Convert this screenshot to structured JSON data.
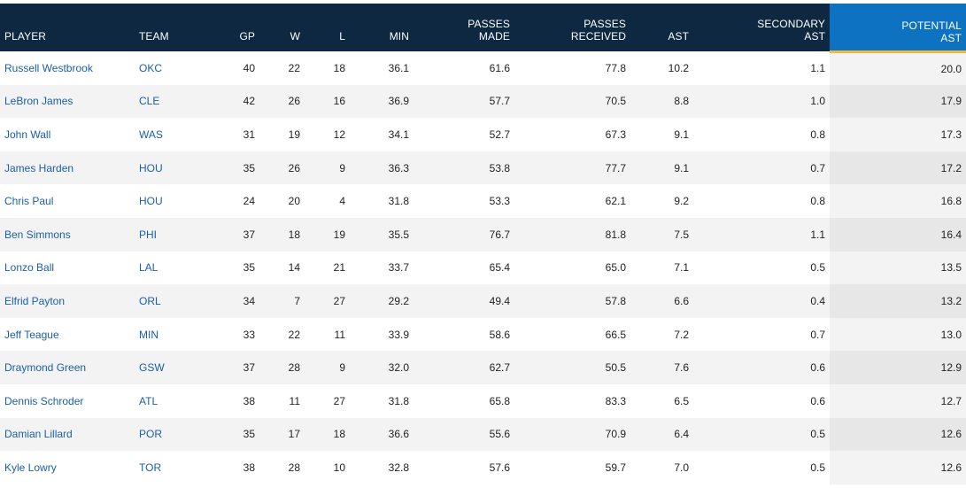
{
  "columns": [
    {
      "key": "player",
      "lines": [
        "PLAYER"
      ],
      "align": "left",
      "width": 152
    },
    {
      "key": "team",
      "lines": [
        "TEAM"
      ],
      "align": "left",
      "width": 104
    },
    {
      "key": "gp",
      "lines": [
        "GP"
      ],
      "align": "right",
      "width": 37
    },
    {
      "key": "w",
      "lines": [
        "W"
      ],
      "align": "right",
      "width": 51
    },
    {
      "key": "l",
      "lines": [
        "L"
      ],
      "align": "right",
      "width": 51
    },
    {
      "key": "min",
      "lines": [
        "MIN"
      ],
      "align": "right",
      "width": 72
    },
    {
      "key": "passes_made",
      "lines": [
        "PASSES",
        "MADE"
      ],
      "align": "right",
      "width": 114
    },
    {
      "key": "passes_received",
      "lines": [
        "PASSES",
        "RECEIVED"
      ],
      "align": "right",
      "width": 131
    },
    {
      "key": "ast",
      "lines": [
        "AST"
      ],
      "align": "right",
      "width": 71
    },
    {
      "key": "secondary_ast",
      "lines": [
        "SECONDARY",
        "AST"
      ],
      "align": "right",
      "width": 154
    },
    {
      "key": "potential_ast",
      "lines": [
        "POTENTIAL",
        "AST"
      ],
      "align": "right",
      "width": 154,
      "sorted": true
    }
  ],
  "rows": [
    {
      "player": "Russell Westbrook",
      "team": "OKC",
      "gp": "40",
      "w": "22",
      "l": "18",
      "min": "36.1",
      "passes_made": "61.6",
      "passes_received": "77.8",
      "ast": "10.2",
      "secondary_ast": "1.1",
      "potential_ast": "20.0"
    },
    {
      "player": "LeBron James",
      "team": "CLE",
      "gp": "42",
      "w": "26",
      "l": "16",
      "min": "36.9",
      "passes_made": "57.7",
      "passes_received": "70.5",
      "ast": "8.8",
      "secondary_ast": "1.0",
      "potential_ast": "17.9"
    },
    {
      "player": "John Wall",
      "team": "WAS",
      "gp": "31",
      "w": "19",
      "l": "12",
      "min": "34.1",
      "passes_made": "52.7",
      "passes_received": "67.3",
      "ast": "9.1",
      "secondary_ast": "0.8",
      "potential_ast": "17.3"
    },
    {
      "player": "James Harden",
      "team": "HOU",
      "gp": "35",
      "w": "26",
      "l": "9",
      "min": "36.3",
      "passes_made": "53.8",
      "passes_received": "77.7",
      "ast": "9.1",
      "secondary_ast": "0.7",
      "potential_ast": "17.2"
    },
    {
      "player": "Chris Paul",
      "team": "HOU",
      "gp": "24",
      "w": "20",
      "l": "4",
      "min": "31.8",
      "passes_made": "53.3",
      "passes_received": "62.1",
      "ast": "9.2",
      "secondary_ast": "0.8",
      "potential_ast": "16.8"
    },
    {
      "player": "Ben Simmons",
      "team": "PHI",
      "gp": "37",
      "w": "18",
      "l": "19",
      "min": "35.5",
      "passes_made": "76.7",
      "passes_received": "81.8",
      "ast": "7.5",
      "secondary_ast": "1.1",
      "potential_ast": "16.4"
    },
    {
      "player": "Lonzo Ball",
      "team": "LAL",
      "gp": "35",
      "w": "14",
      "l": "21",
      "min": "33.7",
      "passes_made": "65.4",
      "passes_received": "65.0",
      "ast": "7.1",
      "secondary_ast": "0.5",
      "potential_ast": "13.5"
    },
    {
      "player": "Elfrid Payton",
      "team": "ORL",
      "gp": "34",
      "w": "7",
      "l": "27",
      "min": "29.2",
      "passes_made": "49.4",
      "passes_received": "57.8",
      "ast": "6.6",
      "secondary_ast": "0.4",
      "potential_ast": "13.2"
    },
    {
      "player": "Jeff Teague",
      "team": "MIN",
      "gp": "33",
      "w": "22",
      "l": "11",
      "min": "33.9",
      "passes_made": "58.6",
      "passes_received": "66.5",
      "ast": "7.2",
      "secondary_ast": "0.7",
      "potential_ast": "13.0"
    },
    {
      "player": "Draymond Green",
      "team": "GSW",
      "gp": "37",
      "w": "28",
      "l": "9",
      "min": "32.0",
      "passes_made": "62.7",
      "passes_received": "50.5",
      "ast": "7.6",
      "secondary_ast": "0.6",
      "potential_ast": "12.9"
    },
    {
      "player": "Dennis Schroder",
      "team": "ATL",
      "gp": "38",
      "w": "11",
      "l": "27",
      "min": "31.8",
      "passes_made": "65.8",
      "passes_received": "83.3",
      "ast": "6.5",
      "secondary_ast": "0.6",
      "potential_ast": "12.7"
    },
    {
      "player": "Damian Lillard",
      "team": "POR",
      "gp": "35",
      "w": "17",
      "l": "18",
      "min": "36.6",
      "passes_made": "55.6",
      "passes_received": "70.9",
      "ast": "6.4",
      "secondary_ast": "0.5",
      "potential_ast": "12.6"
    },
    {
      "player": "Kyle Lowry",
      "team": "TOR",
      "gp": "38",
      "w": "28",
      "l": "10",
      "min": "32.8",
      "passes_made": "57.6",
      "passes_received": "59.7",
      "ast": "7.0",
      "secondary_ast": "0.5",
      "potential_ast": "12.6"
    }
  ],
  "colors": {
    "header_bg": "#0d2840",
    "sorted_header_bg": "#0d72c2",
    "sort_underline": "#f5b841",
    "link": "#1b5fa7"
  }
}
